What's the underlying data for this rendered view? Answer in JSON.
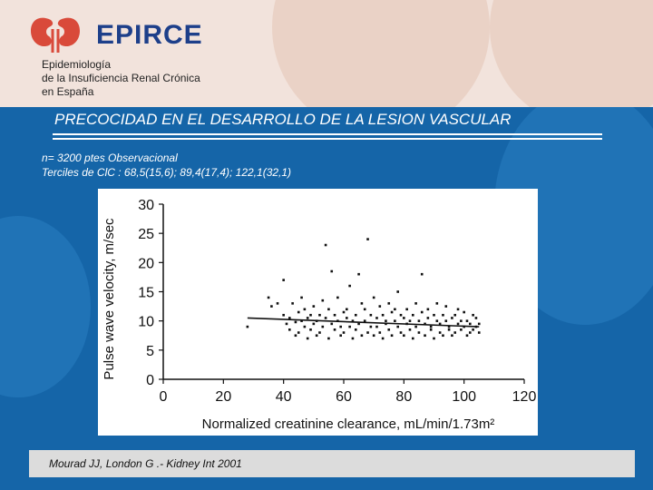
{
  "header": {
    "logo_text": "EPIRCE",
    "subtitle_lines": [
      "Epidemiología",
      "de la Insuficiencia Renal Crónica",
      "en España"
    ]
  },
  "slide": {
    "title": "PRECOCIDAD EN EL DESARROLLO DE LA LESION VASCULAR",
    "line1": "n= 3200 ptes Observacional",
    "line2": "Terciles de ClC : 68,5(15,6); 89,4(17,4); 122,1(32,1)"
  },
  "citation": "Mourad JJ, London G .- Kidney Int 2001",
  "colors": {
    "brand_red": "#d94a3a",
    "brand_blue": "#1d3f8a",
    "background_blue": "#1565a8"
  },
  "chart_data": {
    "type": "scatter",
    "xlabel": "Normalized creatinine clearance, mL/min/1.73m²",
    "ylabel": "Pulse wave velocity, m/sec",
    "xlim": [
      0,
      120
    ],
    "ylim": [
      0,
      30
    ],
    "x_ticks": [
      "0",
      "20",
      "40",
      "60",
      "80",
      "100",
      "120"
    ],
    "y_ticks": [
      "0",
      "5",
      "10",
      "15",
      "20",
      "25",
      "30"
    ],
    "regression_line": {
      "x": [
        28,
        105
      ],
      "y": [
        10.5,
        9.0
      ]
    },
    "points": [
      [
        28,
        9.0
      ],
      [
        35,
        14
      ],
      [
        36,
        12.5
      ],
      [
        38,
        13
      ],
      [
        40,
        17
      ],
      [
        40,
        11
      ],
      [
        41,
        9.5
      ],
      [
        42,
        8.5
      ],
      [
        42,
        10.5
      ],
      [
        43,
        13
      ],
      [
        44,
        7.5
      ],
      [
        44,
        9.8
      ],
      [
        45,
        11.5
      ],
      [
        45,
        8
      ],
      [
        46,
        10
      ],
      [
        46,
        14
      ],
      [
        47,
        12
      ],
      [
        47,
        9
      ],
      [
        48,
        7
      ],
      [
        48,
        10.5
      ],
      [
        49,
        8.5
      ],
      [
        49,
        11
      ],
      [
        50,
        9.5
      ],
      [
        50,
        12.5
      ],
      [
        51,
        7.5
      ],
      [
        51,
        10
      ],
      [
        52,
        11
      ],
      [
        52,
        8
      ],
      [
        53,
        9
      ],
      [
        53,
        13.5
      ],
      [
        54,
        23
      ],
      [
        54,
        10.5
      ],
      [
        55,
        7
      ],
      [
        55,
        12
      ],
      [
        56,
        18.5
      ],
      [
        56,
        9.5
      ],
      [
        57,
        8.5
      ],
      [
        57,
        11
      ],
      [
        58,
        10
      ],
      [
        58,
        14
      ],
      [
        59,
        7.5
      ],
      [
        59,
        9
      ],
      [
        60,
        11.5
      ],
      [
        60,
        8
      ],
      [
        61,
        10.5
      ],
      [
        61,
        12
      ],
      [
        62,
        9
      ],
      [
        62,
        16
      ],
      [
        63,
        7
      ],
      [
        63,
        10
      ],
      [
        64,
        11
      ],
      [
        64,
        8.5
      ],
      [
        65,
        18
      ],
      [
        65,
        9.5
      ],
      [
        66,
        13
      ],
      [
        66,
        7.5
      ],
      [
        67,
        10
      ],
      [
        67,
        12
      ],
      [
        68,
        24
      ],
      [
        68,
        8
      ],
      [
        69,
        9
      ],
      [
        69,
        11
      ],
      [
        70,
        14
      ],
      [
        70,
        7.5
      ],
      [
        71,
        10.5
      ],
      [
        71,
        9
      ],
      [
        72,
        8
      ],
      [
        72,
        12.5
      ],
      [
        73,
        11
      ],
      [
        73,
        7
      ],
      [
        74,
        9.5
      ],
      [
        74,
        10
      ],
      [
        75,
        13
      ],
      [
        75,
        8.5
      ],
      [
        76,
        11.5
      ],
      [
        76,
        7.5
      ],
      [
        77,
        10
      ],
      [
        77,
        12
      ],
      [
        78,
        9
      ],
      [
        78,
        15
      ],
      [
        79,
        8
      ],
      [
        79,
        11
      ],
      [
        80,
        10.5
      ],
      [
        80,
        7.5
      ],
      [
        81,
        9.5
      ],
      [
        81,
        12
      ],
      [
        82,
        8.5
      ],
      [
        82,
        10
      ],
      [
        83,
        11
      ],
      [
        83,
        7
      ],
      [
        84,
        9
      ],
      [
        84,
        13
      ],
      [
        85,
        10
      ],
      [
        85,
        8
      ],
      [
        86,
        18
      ],
      [
        86,
        11.5
      ],
      [
        87,
        9.5
      ],
      [
        87,
        7.5
      ],
      [
        88,
        10.5
      ],
      [
        88,
        12
      ],
      [
        89,
        8.5
      ],
      [
        89,
        9
      ],
      [
        90,
        11
      ],
      [
        90,
        7
      ],
      [
        91,
        10
      ],
      [
        91,
        13
      ],
      [
        92,
        8
      ],
      [
        92,
        9.5
      ],
      [
        93,
        11
      ],
      [
        93,
        7.5
      ],
      [
        94,
        10
      ],
      [
        94,
        12.5
      ],
      [
        95,
        8.5
      ],
      [
        95,
        9
      ],
      [
        96,
        10.5
      ],
      [
        96,
        7.5
      ],
      [
        97,
        11
      ],
      [
        97,
        8
      ],
      [
        98,
        9.5
      ],
      [
        98,
        12
      ],
      [
        99,
        8.5
      ],
      [
        99,
        10
      ],
      [
        100,
        9
      ],
      [
        100,
        11.5
      ],
      [
        101,
        7.5
      ],
      [
        101,
        10
      ],
      [
        102,
        8
      ],
      [
        102,
        9.5
      ],
      [
        103,
        11
      ],
      [
        103,
        8.5
      ],
      [
        104,
        9
      ],
      [
        104,
        10.5
      ],
      [
        105,
        8
      ],
      [
        105,
        9.5
      ]
    ]
  }
}
